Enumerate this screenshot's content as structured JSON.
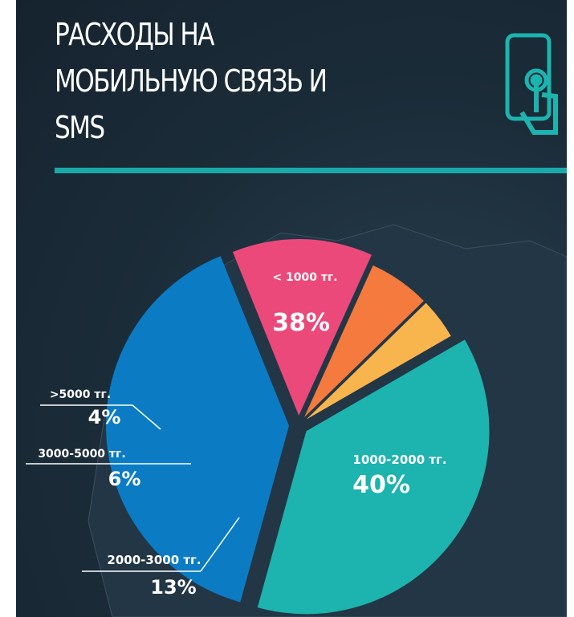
{
  "chart_data": {
    "type": "pie",
    "title": "РАСХОДЫ НА\nМОБИЛЬНУЮ СВЯЗЬ И\nSMS",
    "categories": [
      "< 1000 тг.",
      "1000-2000 тг.",
      "2000-3000 тг.",
      "3000-5000 тг.",
      ">5000 тг."
    ],
    "values": [
      38,
      40,
      13,
      6,
      4
    ],
    "value_labels": [
      "38%",
      "40%",
      "13%",
      "6%",
      "4%"
    ],
    "colors": [
      "#1db3ae",
      "#0b7cc4",
      "#ec497b",
      "#f47a3d",
      "#f8b54e"
    ]
  }
}
